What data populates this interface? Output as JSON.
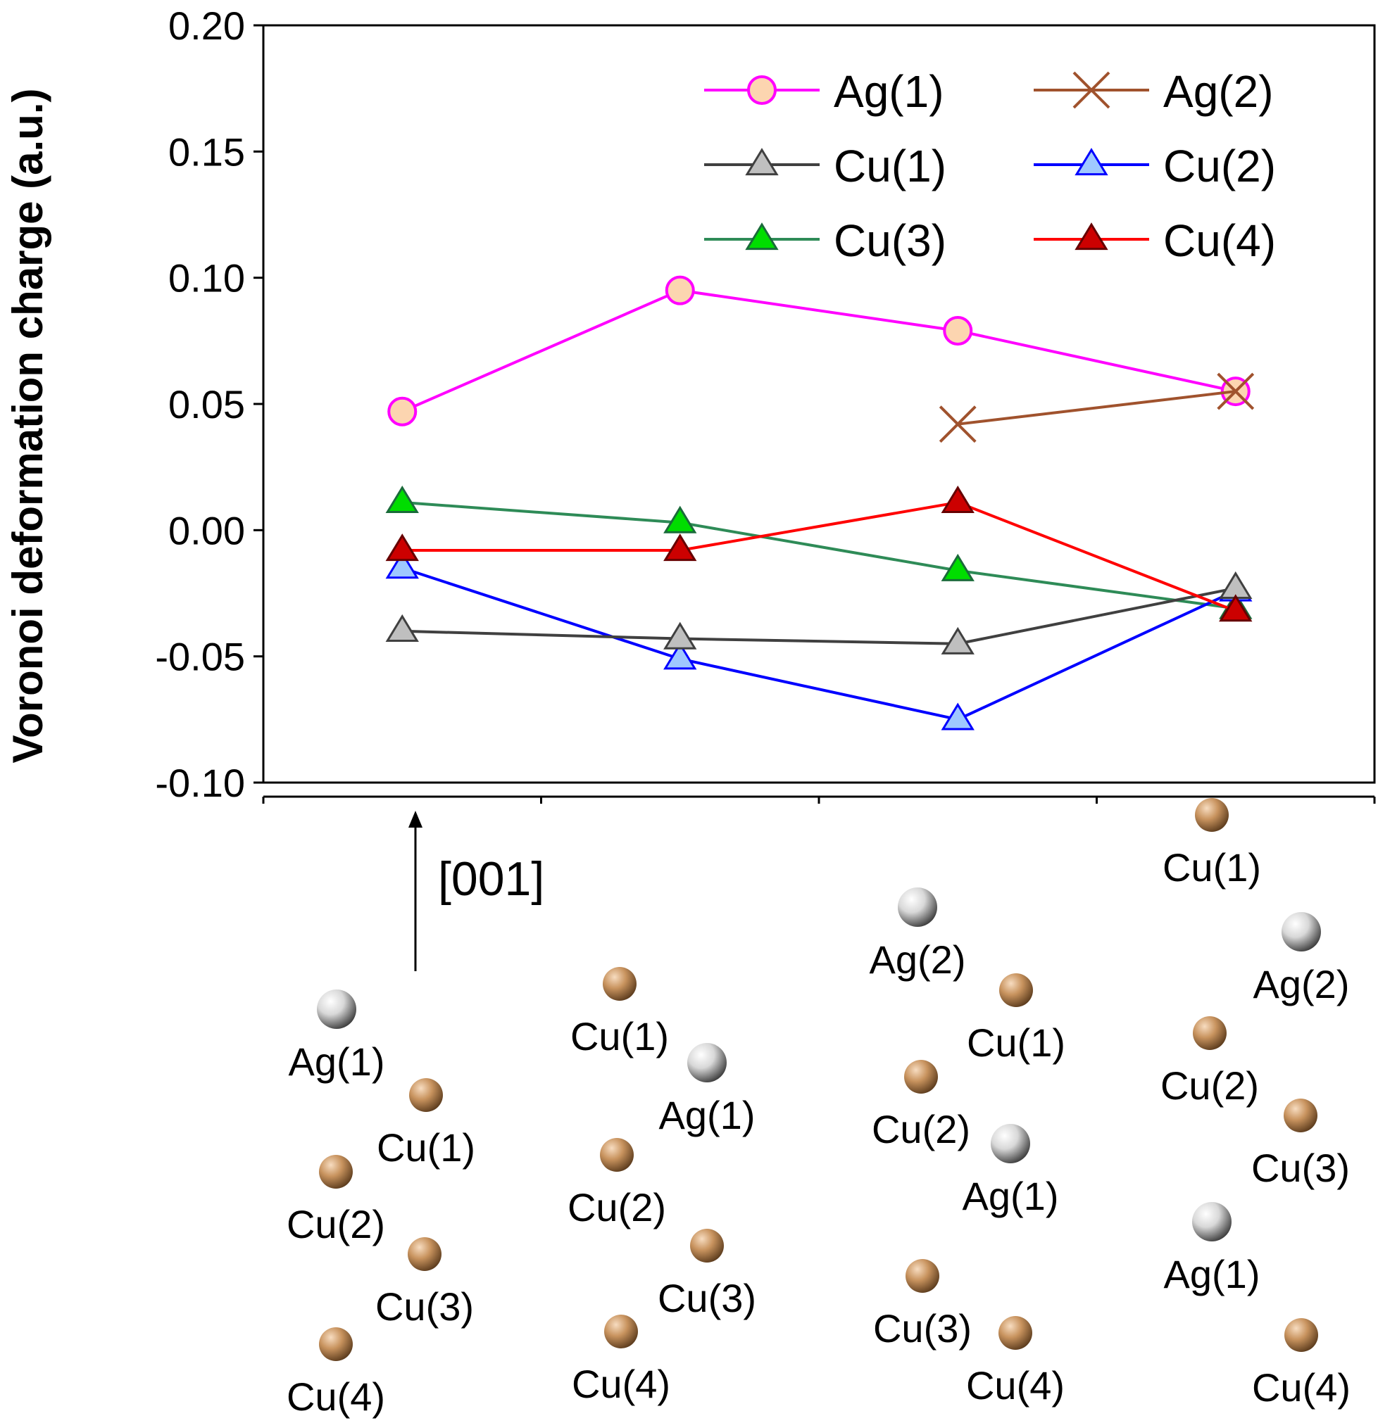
{
  "chart_data": {
    "type": "line",
    "ylabel": "Voronoi deformation charge (a.u.)",
    "ylim": [
      -0.1,
      0.2
    ],
    "yticks": [
      "0.20",
      "0.15",
      "0.10",
      "0.05",
      "0.00",
      "-0.05",
      "-0.10"
    ],
    "ytick_values": [
      0.2,
      0.15,
      0.1,
      0.05,
      0.0,
      -0.05,
      -0.1
    ],
    "x_positions": [
      1,
      2,
      3,
      4
    ],
    "xlim": [
      0.5,
      4.5
    ],
    "xtick_boundaries": [
      0.5,
      1.5,
      2.5,
      3.5,
      4.5
    ],
    "legend_position": "top-right",
    "series": [
      {
        "name": "Ag(1)",
        "color": "#ff00ff",
        "marker": "circle",
        "marker_fill": "#fcd5b0",
        "x": [
          1,
          2,
          3,
          4
        ],
        "values": [
          0.047,
          0.095,
          0.079,
          0.055
        ]
      },
      {
        "name": "Ag(2)",
        "color": "#a0522d",
        "marker": "cross",
        "marker_fill": "#a0522d",
        "x": [
          3,
          4
        ],
        "values": [
          0.042,
          0.055
        ]
      },
      {
        "name": "Cu(1)",
        "color": "#404040",
        "marker": "triangle",
        "marker_fill": "#bfbfbf",
        "x": [
          1,
          2,
          3,
          4
        ],
        "values": [
          -0.04,
          -0.043,
          -0.045,
          -0.023
        ]
      },
      {
        "name": "Cu(2)",
        "color": "#0000ff",
        "marker": "triangle",
        "marker_fill": "#9fc8ff",
        "x": [
          1,
          2,
          3,
          4
        ],
        "values": [
          -0.015,
          -0.051,
          -0.075,
          -0.024
        ]
      },
      {
        "name": "Cu(3)",
        "color": "#2e8b57",
        "marker": "triangle",
        "marker_fill": "#00dd00",
        "x": [
          1,
          2,
          3,
          4
        ],
        "values": [
          0.011,
          0.003,
          -0.016,
          -0.031
        ]
      },
      {
        "name": "Cu(4)",
        "color": "#ff0000",
        "marker": "triangle",
        "marker_fill": "#cc0000",
        "x": [
          1,
          2,
          3,
          4
        ],
        "values": [
          -0.008,
          -0.008,
          0.011,
          -0.032
        ]
      }
    ],
    "annotation": {
      "direction_label": "[001]"
    }
  },
  "structures": [
    {
      "atoms": [
        {
          "label": "Ag(1)",
          "element": "Ag"
        },
        {
          "label": "Cu(1)",
          "element": "Cu"
        },
        {
          "label": "Cu(2)",
          "element": "Cu"
        },
        {
          "label": "Cu(3)",
          "element": "Cu"
        },
        {
          "label": "Cu(4)",
          "element": "Cu"
        }
      ]
    },
    {
      "atoms": [
        {
          "label": "Cu(1)",
          "element": "Cu"
        },
        {
          "label": "Ag(1)",
          "element": "Ag"
        },
        {
          "label": "Cu(2)",
          "element": "Cu"
        },
        {
          "label": "Cu(3)",
          "element": "Cu"
        },
        {
          "label": "Cu(4)",
          "element": "Cu"
        }
      ]
    },
    {
      "atoms": [
        {
          "label": "Ag(2)",
          "element": "Ag"
        },
        {
          "label": "Cu(1)",
          "element": "Cu"
        },
        {
          "label": "Cu(2)",
          "element": "Cu"
        },
        {
          "label": "Ag(1)",
          "element": "Ag"
        },
        {
          "label": "Cu(3)",
          "element": "Cu"
        },
        {
          "label": "Cu(4)",
          "element": "Cu"
        }
      ]
    },
    {
      "atoms": [
        {
          "label": "Cu(1)",
          "element": "Cu"
        },
        {
          "label": "Ag(2)",
          "element": "Ag"
        },
        {
          "label": "Cu(2)",
          "element": "Cu"
        },
        {
          "label": "Cu(3)",
          "element": "Cu"
        },
        {
          "label": "Ag(1)",
          "element": "Ag"
        },
        {
          "label": "Cu(4)",
          "element": "Cu"
        }
      ]
    }
  ],
  "colors": {
    "cu_atom": "#c8935e",
    "ag_atom": "#d8d8d8"
  }
}
